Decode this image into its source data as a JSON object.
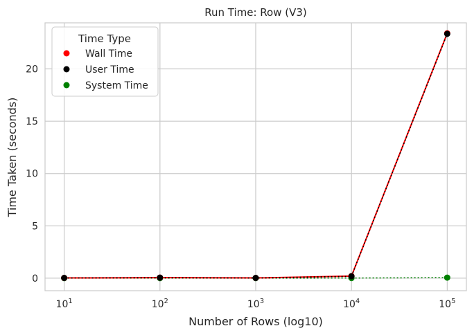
{
  "chart_data": {
    "type": "line",
    "title": "Run Time: Row (V3)",
    "xlabel": "Number of Rows (log10)",
    "ylabel": "Time Taken (seconds)",
    "x_scale": "log10",
    "x": [
      10,
      100,
      1000,
      10000,
      100000
    ],
    "x_tick_labels": [
      {
        "base": "10",
        "exp": "1"
      },
      {
        "base": "10",
        "exp": "2"
      },
      {
        "base": "10",
        "exp": "3"
      },
      {
        "base": "10",
        "exp": "4"
      },
      {
        "base": "10",
        "exp": "5"
      }
    ],
    "y_ticks": [
      0,
      5,
      10,
      15,
      20
    ],
    "y_tick_labels": [
      "0",
      "5",
      "10",
      "15",
      "20"
    ],
    "ylim": [
      -1.2,
      24.4
    ],
    "grid": true,
    "legend": {
      "title": "Time Type",
      "placement": "top-left"
    },
    "series": [
      {
        "name": "Wall Time",
        "color": "#ff0000",
        "line_style": "solid",
        "values": [
          0.02,
          0.05,
          0.02,
          0.2,
          23.4
        ]
      },
      {
        "name": "User Time",
        "color": "#000000",
        "line_style": "dotted",
        "values": [
          0.02,
          0.05,
          0.02,
          0.18,
          23.35
        ]
      },
      {
        "name": "System Time",
        "color": "#008000",
        "line_style": "dotted",
        "values": [
          0.0,
          0.0,
          0.0,
          0.01,
          0.05
        ]
      }
    ]
  }
}
